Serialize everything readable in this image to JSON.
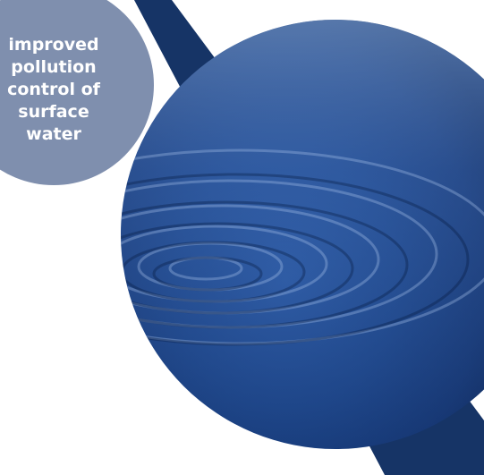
{
  "badge": {
    "lines": [
      "improved",
      "pollution",
      "control of",
      "surface",
      "water"
    ]
  }
}
